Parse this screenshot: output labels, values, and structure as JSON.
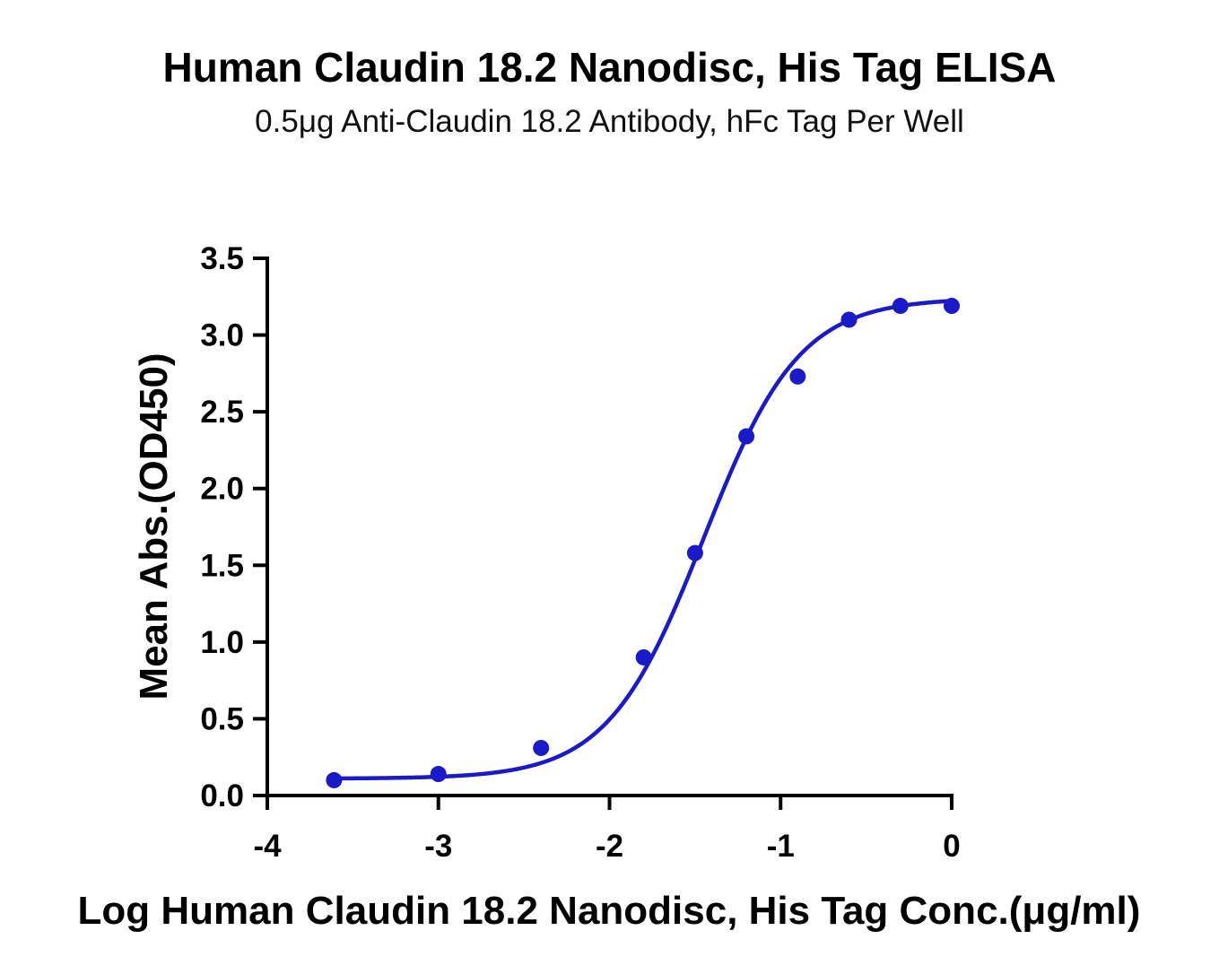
{
  "chart_data": {
    "type": "scatter",
    "title": "Human Claudin 18.2 Nanodisc, His Tag ELISA",
    "subtitle": "0.5μg Anti-Claudin 18.2 Antibody, hFc Tag Per Well",
    "xlabel": "Log Human Claudin 18.2 Nanodisc, His Tag Conc.(μg/ml)",
    "ylabel": "Mean Abs.(OD450)",
    "xlim": [
      -4,
      0
    ],
    "ylim": [
      0,
      3.5
    ],
    "x_ticks": [
      -4,
      -3,
      -2,
      -1,
      0
    ],
    "x_tick_labels": [
      "-4",
      "-3",
      "-2",
      "-1",
      "0"
    ],
    "y_ticks": [
      0,
      0.5,
      1,
      1.5,
      2,
      2.5,
      3,
      3.5
    ],
    "y_tick_labels": [
      "0.0",
      "0.5",
      "1.0",
      "1.5",
      "2.0",
      "2.5",
      "3.0",
      "3.5"
    ],
    "grid": false,
    "series": [
      {
        "color": "#1a1ac8",
        "points": [
          {
            "x": -3.61,
            "y": 0.1
          },
          {
            "x": -3.0,
            "y": 0.14
          },
          {
            "x": -2.4,
            "y": 0.31
          },
          {
            "x": -1.8,
            "y": 0.9
          },
          {
            "x": -1.5,
            "y": 1.58
          },
          {
            "x": -1.2,
            "y": 2.34
          },
          {
            "x": -0.9,
            "y": 2.73
          },
          {
            "x": -0.6,
            "y": 3.1
          },
          {
            "x": -0.3,
            "y": 3.19
          },
          {
            "x": 0.0,
            "y": 3.19
          }
        ],
        "fit": {
          "model": "4PL",
          "bottom": 0.11,
          "top": 3.24,
          "logEC50": -1.45,
          "hill": 1.55
        }
      }
    ]
  }
}
